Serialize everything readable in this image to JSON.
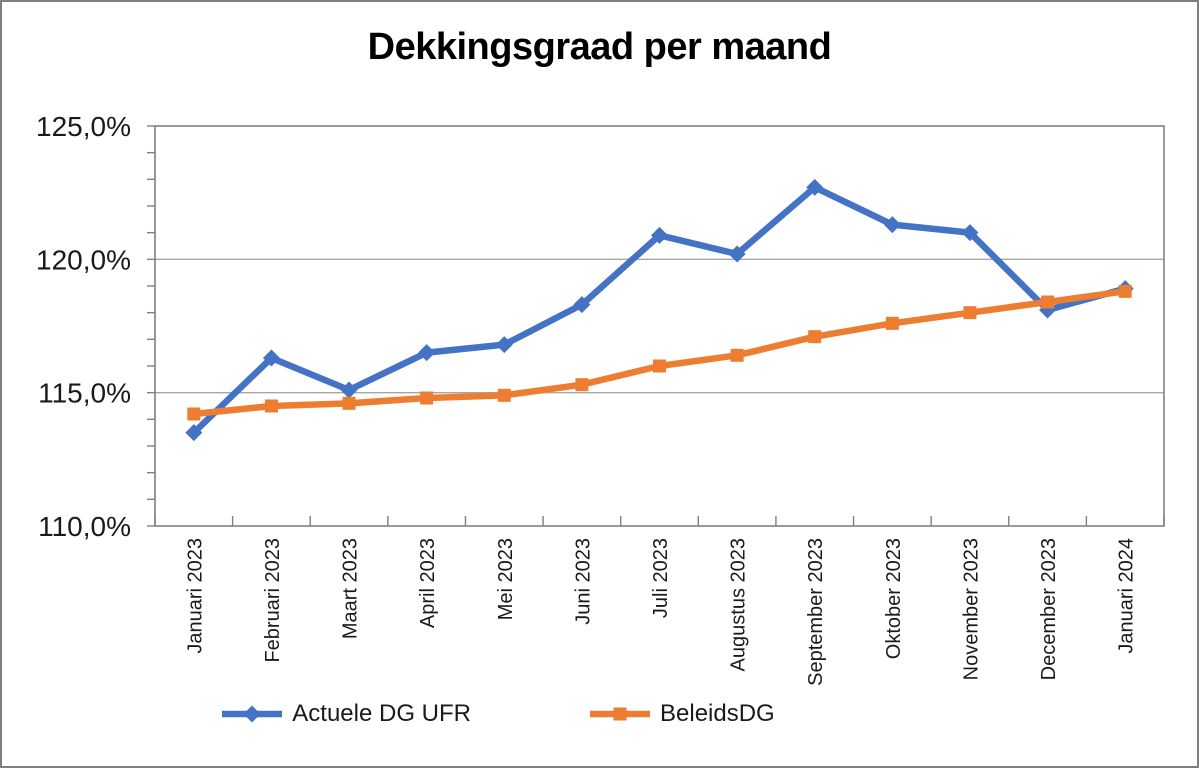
{
  "chart_data": {
    "type": "line",
    "title": "Dekkingsgraad per maand",
    "categories": [
      "Januari 2023",
      "Februari 2023",
      "Maart 2023",
      "April 2023",
      "Mei 2023",
      "Juni 2023",
      "Juli 2023",
      "Augustus 2023",
      "September 2023",
      "Oktober 2023",
      "November 2023",
      "December 2023",
      "Januari 2024"
    ],
    "series": [
      {
        "name": "Actuele DG UFR",
        "color": "#4472C4",
        "marker": "diamond",
        "values": [
          113.5,
          116.3,
          115.1,
          116.5,
          116.8,
          118.3,
          120.9,
          120.2,
          122.7,
          121.3,
          121.0,
          118.1,
          118.9
        ]
      },
      {
        "name": "BeleidsDG",
        "color": "#ED7D31",
        "marker": "square",
        "values": [
          114.2,
          114.5,
          114.6,
          114.8,
          114.9,
          115.3,
          116.0,
          116.4,
          117.1,
          117.6,
          118.0,
          118.4,
          118.8
        ]
      }
    ],
    "ylim": [
      110,
      125
    ],
    "y_ticks": [
      {
        "value": 125,
        "label": "125,0%"
      },
      {
        "value": 120,
        "label": "120,0%"
      },
      {
        "value": 115,
        "label": "115,0%"
      },
      {
        "value": 110,
        "label": "110,0%"
      }
    ],
    "y_minor_tick_step": 1,
    "grid": true,
    "legend_position": "bottom",
    "styles": {
      "gridline_color": "#A6A6A6",
      "axis_color": "#808080",
      "label_color": "#1A1A1A"
    }
  }
}
